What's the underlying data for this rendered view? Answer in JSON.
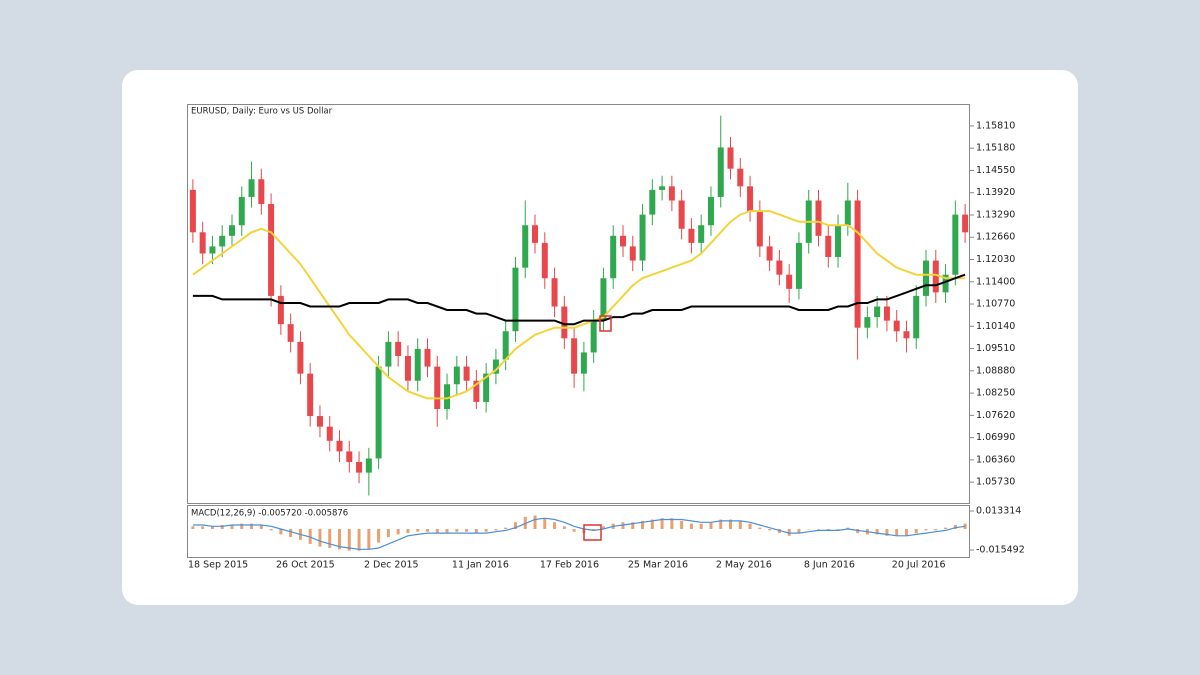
{
  "chart_data": [
    {
      "type": "candlestick",
      "title": "EURUSD, Daily:  Euro vs US Dollar",
      "up_color": "#2fa84f",
      "down_color": "#e8474b",
      "categories": [
        "18 Sep 2015",
        null,
        null,
        null,
        null,
        null,
        null,
        null,
        null,
        "26 Oct 2015",
        null,
        null,
        null,
        null,
        null,
        null,
        null,
        null,
        "2 Dec 2015",
        null,
        null,
        null,
        null,
        null,
        null,
        null,
        null,
        "11 Jan 2016",
        null,
        null,
        null,
        null,
        null,
        null,
        null,
        null,
        "17 Feb 2016",
        null,
        null,
        null,
        null,
        null,
        null,
        null,
        null,
        "25 Mar 2016",
        null,
        null,
        null,
        null,
        null,
        null,
        null,
        null,
        "2 May 2016",
        null,
        null,
        null,
        null,
        null,
        null,
        null,
        null,
        "8 Jun 2016",
        null,
        null,
        null,
        null,
        null,
        null,
        null,
        null,
        "20 Jul 2016",
        null,
        null,
        null,
        null,
        null,
        null,
        null
      ],
      "open": [
        1.14,
        1.128,
        1.122,
        1.124,
        1.127,
        1.13,
        1.138,
        1.143,
        1.136,
        1.11,
        1.102,
        1.097,
        1.088,
        1.076,
        1.073,
        1.069,
        1.066,
        1.063,
        1.06,
        1.064,
        1.09,
        1.097,
        1.093,
        1.086,
        1.095,
        1.09,
        1.078,
        1.085,
        1.09,
        1.086,
        1.08,
        1.088,
        1.092,
        1.1,
        1.118,
        1.13,
        1.125,
        1.115,
        1.107,
        1.098,
        1.088,
        1.094,
        1.103,
        1.115,
        1.127,
        1.124,
        1.12,
        1.133,
        1.14,
        1.141,
        1.137,
        1.129,
        1.125,
        1.13,
        1.138,
        1.152,
        1.146,
        1.141,
        1.134,
        1.124,
        1.12,
        1.116,
        1.112,
        1.125,
        1.137,
        1.127,
        1.121,
        1.13,
        1.137,
        1.101,
        1.104,
        1.107,
        1.103,
        1.1,
        1.098,
        1.11,
        1.12,
        1.111,
        1.116,
        1.133
      ],
      "high": [
        1.143,
        1.131,
        1.127,
        1.13,
        1.133,
        1.141,
        1.148,
        1.146,
        1.139,
        1.113,
        1.105,
        1.1,
        1.091,
        1.079,
        1.076,
        1.072,
        1.069,
        1.066,
        1.067,
        1.093,
        1.1,
        1.1,
        1.096,
        1.098,
        1.098,
        1.093,
        1.088,
        1.093,
        1.093,
        1.089,
        1.091,
        1.095,
        1.103,
        1.121,
        1.137,
        1.133,
        1.128,
        1.118,
        1.11,
        1.101,
        1.097,
        1.106,
        1.118,
        1.13,
        1.13,
        1.127,
        1.136,
        1.143,
        1.144,
        1.144,
        1.14,
        1.132,
        1.133,
        1.141,
        1.161,
        1.155,
        1.149,
        1.144,
        1.137,
        1.127,
        1.123,
        1.119,
        1.128,
        1.14,
        1.14,
        1.13,
        1.133,
        1.142,
        1.14,
        1.107,
        1.11,
        1.11,
        1.106,
        1.103,
        1.113,
        1.123,
        1.123,
        1.119,
        1.137,
        1.136
      ],
      "low": [
        1.125,
        1.119,
        1.119,
        1.121,
        1.124,
        1.127,
        1.135,
        1.133,
        1.107,
        1.099,
        1.094,
        1.085,
        1.073,
        1.07,
        1.066,
        1.063,
        1.06,
        1.057,
        1.0535,
        1.061,
        1.087,
        1.09,
        1.083,
        1.083,
        1.087,
        1.073,
        1.075,
        1.082,
        1.083,
        1.078,
        1.077,
        1.085,
        1.089,
        1.097,
        1.115,
        1.122,
        1.112,
        1.104,
        1.095,
        1.084,
        1.083,
        1.091,
        1.1,
        1.112,
        1.121,
        1.117,
        1.117,
        1.13,
        1.137,
        1.134,
        1.126,
        1.122,
        1.122,
        1.127,
        1.135,
        1.143,
        1.138,
        1.131,
        1.121,
        1.117,
        1.113,
        1.108,
        1.109,
        1.122,
        1.124,
        1.118,
        1.118,
        1.127,
        1.092,
        1.098,
        1.101,
        1.1,
        1.097,
        1.094,
        1.095,
        1.107,
        1.108,
        1.108,
        1.113,
        1.125
      ],
      "close": [
        1.128,
        1.122,
        1.124,
        1.127,
        1.13,
        1.138,
        1.143,
        1.136,
        1.11,
        1.102,
        1.097,
        1.088,
        1.076,
        1.073,
        1.069,
        1.066,
        1.063,
        1.06,
        1.064,
        1.09,
        1.097,
        1.093,
        1.086,
        1.095,
        1.09,
        1.078,
        1.085,
        1.09,
        1.086,
        1.08,
        1.088,
        1.092,
        1.1,
        1.118,
        1.13,
        1.125,
        1.115,
        1.107,
        1.098,
        1.088,
        1.094,
        1.103,
        1.115,
        1.127,
        1.124,
        1.12,
        1.133,
        1.14,
        1.141,
        1.137,
        1.129,
        1.125,
        1.13,
        1.138,
        1.152,
        1.146,
        1.141,
        1.134,
        1.124,
        1.12,
        1.116,
        1.112,
        1.125,
        1.137,
        1.127,
        1.121,
        1.13,
        1.137,
        1.101,
        1.104,
        1.107,
        1.103,
        1.1,
        1.098,
        1.11,
        1.12,
        1.111,
        1.116,
        1.133,
        1.128
      ],
      "series": [
        {
          "color": "#f5d33a",
          "values": [
            1.116,
            1.118,
            1.12,
            1.122,
            1.124,
            1.126,
            1.128,
            1.129,
            1.128,
            1.125,
            1.122,
            1.119,
            1.115,
            1.111,
            1.107,
            1.103,
            1.099,
            1.096,
            1.093,
            1.09,
            1.087,
            1.085,
            1.083,
            1.082,
            1.081,
            1.081,
            1.081,
            1.082,
            1.083,
            1.085,
            1.087,
            1.089,
            1.092,
            1.095,
            1.097,
            1.099,
            1.1,
            1.101,
            1.101,
            1.101,
            1.102,
            1.103,
            1.104,
            1.107,
            1.11,
            1.113,
            1.115,
            1.116,
            1.117,
            1.118,
            1.119,
            1.12,
            1.122,
            1.125,
            1.128,
            1.131,
            1.133,
            1.134,
            1.134,
            1.134,
            1.133,
            1.132,
            1.131,
            1.131,
            1.131,
            1.13,
            1.13,
            1.13,
            1.128,
            1.125,
            1.122,
            1.12,
            1.118,
            1.117,
            1.116,
            1.116,
            1.116,
            1.115,
            1.115,
            1.115
          ]
        },
        {
          "color": "#000000",
          "values": [
            1.11,
            1.11,
            1.11,
            1.109,
            1.109,
            1.109,
            1.109,
            1.109,
            1.109,
            1.108,
            1.108,
            1.108,
            1.107,
            1.107,
            1.107,
            1.107,
            1.108,
            1.108,
            1.108,
            1.108,
            1.109,
            1.109,
            1.109,
            1.108,
            1.108,
            1.107,
            1.106,
            1.106,
            1.106,
            1.105,
            1.105,
            1.104,
            1.103,
            1.103,
            1.103,
            1.103,
            1.103,
            1.103,
            1.102,
            1.102,
            1.103,
            1.103,
            1.103,
            1.104,
            1.104,
            1.105,
            1.105,
            1.106,
            1.106,
            1.106,
            1.106,
            1.107,
            1.107,
            1.107,
            1.107,
            1.107,
            1.107,
            1.107,
            1.107,
            1.107,
            1.107,
            1.107,
            1.106,
            1.106,
            1.106,
            1.106,
            1.107,
            1.107,
            1.108,
            1.108,
            1.109,
            1.109,
            1.11,
            1.111,
            1.112,
            1.113,
            1.113,
            1.114,
            1.115,
            1.116
          ]
        }
      ],
      "ylim": [
        1.0514,
        1.1643
      ],
      "yticks": [
        {
          "value": 1.0573,
          "label": "1.05730"
        },
        {
          "value": 1.0636,
          "label": "1.06360"
        },
        {
          "value": 1.0699,
          "label": "1.06990"
        },
        {
          "value": 1.0762,
          "label": "1.07620"
        },
        {
          "value": 1.0825,
          "label": "1.08250"
        },
        {
          "value": 1.0888,
          "label": "1.08880"
        },
        {
          "value": 1.0951,
          "label": "1.09510"
        },
        {
          "value": 1.1014,
          "label": "1.10140"
        },
        {
          "value": 1.1077,
          "label": "1.10770"
        },
        {
          "value": 1.114,
          "label": "1.11400"
        },
        {
          "value": 1.1203,
          "label": "1.12030"
        },
        {
          "value": 1.1266,
          "label": "1.12660"
        },
        {
          "value": 1.1329,
          "label": "1.13290"
        },
        {
          "value": 1.1392,
          "label": "1.13920"
        },
        {
          "value": 1.1455,
          "label": "1.14550"
        },
        {
          "value": 1.1518,
          "label": "1.15180"
        },
        {
          "value": 1.1581,
          "label": "1.15810"
        }
      ]
    },
    {
      "type": "macd",
      "title": "MACD(12,26,9) -0.005720 -0.005876",
      "histogram": {
        "color": "#e8a070",
        "values": [
          0.002,
          0.002,
          0.002,
          0.003,
          0.003,
          0.004,
          0.004,
          0.003,
          -0.001,
          -0.004,
          -0.006,
          -0.008,
          -0.011,
          -0.013,
          -0.014,
          -0.015,
          -0.016,
          -0.016,
          -0.015,
          -0.01,
          -0.006,
          -0.004,
          -0.003,
          -0.002,
          -0.002,
          -0.003,
          -0.003,
          -0.002,
          -0.002,
          -0.003,
          -0.002,
          -0.001,
          0.001,
          0.005,
          0.009,
          0.01,
          0.008,
          0.005,
          0.002,
          -0.002,
          -0.003,
          -0.001,
          0.002,
          0.004,
          0.005,
          0.005,
          0.006,
          0.007,
          0.008,
          0.008,
          0.006,
          0.004,
          0.004,
          0.005,
          0.007,
          0.007,
          0.006,
          0.004,
          0.001,
          -0.001,
          -0.003,
          -0.005,
          -0.003,
          0.0,
          0.0,
          -0.001,
          0.0,
          0.001,
          -0.003,
          -0.004,
          -0.004,
          -0.005,
          -0.005,
          -0.005,
          -0.003,
          -0.001,
          -0.001,
          0.001,
          0.003,
          0.004
        ]
      },
      "signal": {
        "color": "#4a90d9",
        "values": [
          0.003,
          0.003,
          0.002,
          0.002,
          0.003,
          0.003,
          0.003,
          0.003,
          0.002,
          0.0,
          -0.002,
          -0.004,
          -0.006,
          -0.009,
          -0.011,
          -0.013,
          -0.014,
          -0.015,
          -0.015,
          -0.014,
          -0.011,
          -0.008,
          -0.005,
          -0.004,
          -0.003,
          -0.003,
          -0.003,
          -0.003,
          -0.003,
          -0.003,
          -0.003,
          -0.002,
          -0.001,
          0.001,
          0.004,
          0.007,
          0.008,
          0.007,
          0.005,
          0.002,
          0.0,
          -0.001,
          0.0,
          0.002,
          0.003,
          0.004,
          0.005,
          0.006,
          0.007,
          0.007,
          0.007,
          0.006,
          0.005,
          0.005,
          0.006,
          0.006,
          0.006,
          0.005,
          0.003,
          0.001,
          -0.001,
          -0.003,
          -0.003,
          -0.002,
          -0.001,
          -0.001,
          -0.001,
          0.0,
          -0.001,
          -0.002,
          -0.003,
          -0.004,
          -0.005,
          -0.005,
          -0.004,
          -0.003,
          -0.002,
          -0.001,
          0.001,
          0.002
        ]
      },
      "ylim": [
        -0.02067,
        0.01775
      ],
      "yticks": [
        0.013314,
        -0.015492
      ]
    }
  ]
}
